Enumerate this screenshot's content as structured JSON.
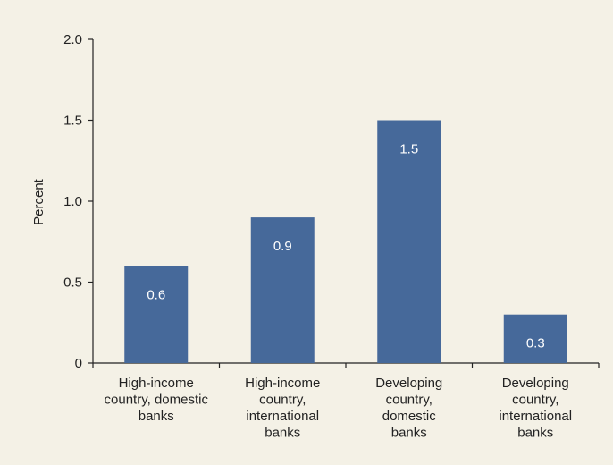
{
  "chart_data": {
    "type": "bar",
    "categories": [
      [
        "High-income",
        "country, domestic",
        "banks"
      ],
      [
        "High-income",
        "country,",
        "international",
        "banks"
      ],
      [
        "Developing",
        "country,",
        "domestic",
        "banks"
      ],
      [
        "Developing",
        "country,",
        "international",
        "banks"
      ]
    ],
    "values": [
      0.6,
      0.9,
      1.5,
      0.3
    ],
    "value_labels": [
      "0.6",
      "0.9",
      "1.5",
      "0.3"
    ],
    "ylabel": "Percent",
    "ylim": [
      0,
      2.0
    ],
    "yticks": [
      0,
      0.5,
      1.0,
      1.5,
      2.0
    ],
    "ytick_labels": [
      "0",
      "0.5",
      "1.0",
      "1.5",
      "2.0"
    ],
    "grid": false,
    "colors": {
      "bar": "#46699a",
      "bar_label": "#ffffff",
      "background": "#f4f1e6",
      "axis": "#222222"
    }
  }
}
